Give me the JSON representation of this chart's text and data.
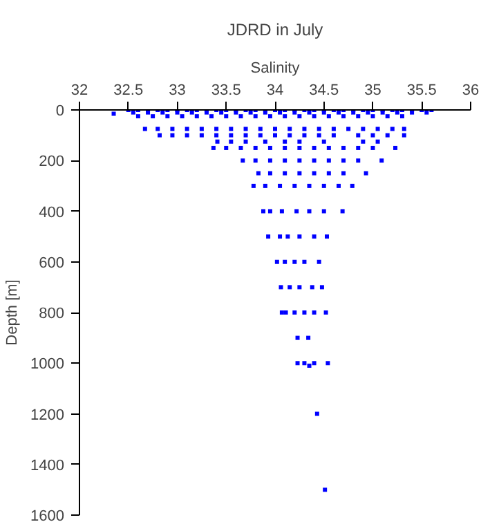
{
  "chart_data": {
    "type": "scatter",
    "title": "JDRD in July",
    "xlabel": "Salinity",
    "ylabel": "Depth [m]",
    "xlim": [
      32,
      36
    ],
    "xticks": [
      32,
      32.5,
      33,
      33.5,
      34,
      34.5,
      35,
      35.5,
      36
    ],
    "ylim": [
      1600,
      0
    ],
    "yticks": [
      0,
      200,
      400,
      600,
      800,
      1000,
      1200,
      1400,
      1600
    ],
    "grid": false,
    "marker": "square",
    "series": [
      {
        "color": "#0000ff",
        "x": [
          32.5,
          32.6,
          32.7,
          32.8,
          32.9,
          33.0,
          33.1,
          33.2,
          33.3,
          33.4,
          33.5,
          33.6,
          33.7,
          33.8,
          33.9,
          34.0,
          34.1,
          34.2,
          34.3,
          34.4,
          34.5,
          34.6,
          34.7,
          34.8,
          34.9,
          35.0,
          35.1,
          35.2,
          35.3,
          35.4,
          35.5,
          35.6
        ],
        "values": [
          0,
          0,
          0,
          0,
          0,
          0,
          0,
          0,
          0,
          0,
          0,
          0,
          0,
          0,
          0,
          0,
          0,
          0,
          0,
          0,
          0,
          0,
          0,
          0,
          0,
          0,
          0,
          0,
          0,
          0,
          0,
          0
        ]
      },
      {
        "color": "#0000ff",
        "x": [
          32.35,
          32.55,
          32.7,
          32.85,
          33.0,
          33.15,
          33.3,
          33.45,
          33.6,
          33.75,
          33.9,
          34.05,
          34.2,
          34.35,
          34.5,
          34.65,
          34.8,
          34.95,
          35.1,
          35.25,
          35.4,
          35.55
        ],
        "values": [
          15,
          10,
          10,
          10,
          10,
          10,
          10,
          10,
          10,
          10,
          10,
          10,
          10,
          10,
          10,
          10,
          10,
          10,
          10,
          10,
          10,
          10
        ]
      },
      {
        "color": "#0000ff",
        "x": [
          32.6,
          32.75,
          32.9,
          33.05,
          33.2,
          33.35,
          33.5,
          33.65,
          33.8,
          33.95,
          34.1,
          34.25,
          34.4,
          34.55,
          34.7,
          34.85,
          35.0,
          35.15,
          35.3
        ],
        "values": [
          25,
          25,
          25,
          25,
          25,
          25,
          25,
          25,
          25,
          25,
          25,
          25,
          25,
          25,
          25,
          25,
          25,
          25,
          25
        ]
      },
      {
        "color": "#0000ff",
        "x": [
          32.67,
          32.8,
          32.95,
          33.1,
          33.25,
          33.4,
          33.55,
          33.7,
          33.85,
          34.0,
          34.15,
          34.3,
          34.45,
          34.6,
          34.75,
          34.9,
          35.05,
          35.2,
          35.32
        ],
        "values": [
          75,
          75,
          75,
          75,
          75,
          75,
          75,
          75,
          75,
          75,
          75,
          75,
          75,
          75,
          75,
          75,
          75,
          75,
          75
        ]
      },
      {
        "color": "#0000ff",
        "x": [
          32.82,
          32.95,
          33.1,
          33.25,
          33.4,
          33.55,
          33.7,
          33.85,
          34.0,
          34.15,
          34.3,
          34.45,
          34.6,
          34.85,
          35.0,
          35.15,
          35.32
        ],
        "values": [
          100,
          100,
          100,
          100,
          100,
          100,
          100,
          100,
          100,
          100,
          100,
          100,
          100,
          100,
          100,
          100,
          100
        ]
      },
      {
        "color": "#0000ff",
        "x": [
          33.41,
          33.55,
          33.7,
          33.9,
          34.1,
          34.25,
          34.5,
          34.9,
          35.05
        ],
        "values": [
          125,
          125,
          125,
          125,
          125,
          125,
          125,
          125,
          125
        ]
      },
      {
        "color": "#0000ff",
        "x": [
          33.37,
          33.5,
          33.65,
          33.8,
          33.95,
          34.1,
          34.25,
          34.4,
          34.55,
          34.7,
          34.85,
          35.0,
          35.23
        ],
        "values": [
          150,
          150,
          150,
          150,
          150,
          150,
          150,
          150,
          150,
          150,
          150,
          150,
          150
        ]
      },
      {
        "color": "#0000ff",
        "x": [
          33.67,
          33.8,
          33.95,
          34.1,
          34.25,
          34.4,
          34.55,
          34.7,
          34.85,
          35.09
        ],
        "values": [
          200,
          200,
          200,
          200,
          200,
          200,
          200,
          200,
          200,
          200
        ]
      },
      {
        "color": "#0000ff",
        "x": [
          33.83,
          33.95,
          34.1,
          34.25,
          34.4,
          34.55,
          34.7,
          34.93
        ],
        "values": [
          250,
          250,
          250,
          250,
          250,
          250,
          250,
          250
        ]
      },
      {
        "color": "#0000ff",
        "x": [
          33.78,
          33.9,
          34.05,
          34.2,
          34.35,
          34.5,
          34.65,
          34.79
        ],
        "values": [
          300,
          300,
          300,
          300,
          300,
          300,
          300,
          300
        ]
      },
      {
        "color": "#0000ff",
        "x": [
          33.88,
          33.95,
          34.07,
          34.22,
          34.35,
          34.5,
          34.69
        ],
        "values": [
          400,
          400,
          400,
          400,
          400,
          400,
          400
        ]
      },
      {
        "color": "#0000ff",
        "x": [
          33.93,
          34.05,
          34.13,
          34.25,
          34.4,
          34.53
        ],
        "values": [
          500,
          500,
          500,
          500,
          500,
          500
        ]
      },
      {
        "color": "#0000ff",
        "x": [
          34.02,
          34.1,
          34.2,
          34.3,
          34.45
        ],
        "values": [
          600,
          600,
          600,
          600,
          600
        ]
      },
      {
        "color": "#0000ff",
        "x": [
          34.06,
          34.15,
          34.25,
          34.38,
          34.48
        ],
        "values": [
          700,
          700,
          700,
          700,
          700
        ]
      },
      {
        "color": "#0000ff",
        "x": [
          34.07,
          34.11,
          34.2,
          34.3,
          34.4,
          34.52
        ],
        "values": [
          800,
          800,
          800,
          800,
          800,
          800
        ]
      },
      {
        "color": "#0000ff",
        "x": [
          34.23,
          34.34
        ],
        "values": [
          900,
          900
        ]
      },
      {
        "color": "#0000ff",
        "x": [
          34.23,
          34.3,
          34.35,
          34.4,
          34.54
        ],
        "values": [
          1000,
          1000,
          1010,
          1000,
          1000
        ]
      },
      {
        "color": "#0000ff",
        "x": [
          34.43
        ],
        "values": [
          1200
        ]
      },
      {
        "color": "#0000ff",
        "x": [
          34.51
        ],
        "values": [
          1500
        ]
      }
    ]
  }
}
